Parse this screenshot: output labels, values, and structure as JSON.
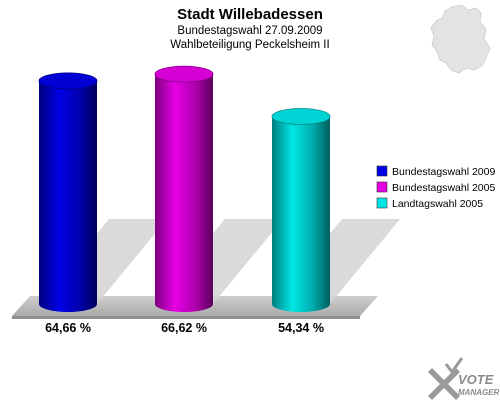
{
  "chart_data": {
    "type": "bar",
    "title": "Stadt Willebadessen",
    "subtitle": "Bundestagswahl 27.09.2009",
    "subtitle2": "Wahlbeteiligung Peckelsheim II",
    "categories": [
      "Bundestagswahl 2009",
      "Bundestagswahl 2005",
      "Landtagswahl 2005"
    ],
    "values": [
      64.66,
      66.62,
      54.34
    ],
    "value_labels": [
      "64,66 %",
      "66,62 %",
      "54,34 %"
    ],
    "colors": [
      "#0000e6",
      "#e600e6",
      "#00e6e6"
    ],
    "ylim": [
      0,
      75
    ],
    "grid": false,
    "legend_position": "right"
  },
  "legend": {
    "items": [
      {
        "label": "Bundestagswahl 2009",
        "color": "#0000e6"
      },
      {
        "label": "Bundestagswahl 2005",
        "color": "#e600e6"
      },
      {
        "label": "Landtagswahl 2005",
        "color": "#00e6e6"
      }
    ]
  },
  "logo": {
    "line1": "VOTE",
    "line2": "MANAGER"
  },
  "map_icon": "germany-map-icon"
}
